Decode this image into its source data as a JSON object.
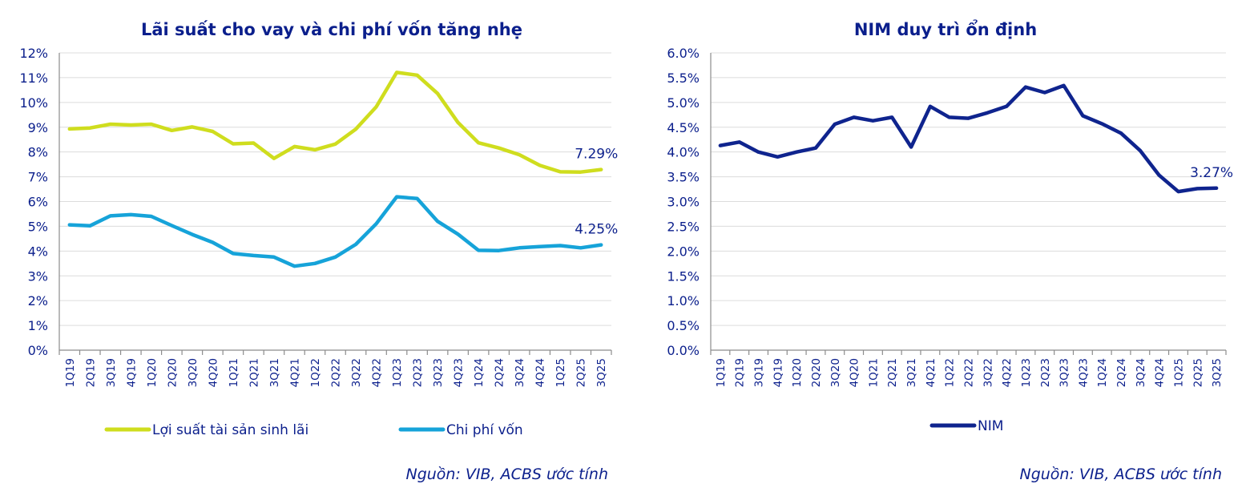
{
  "colors": {
    "text": "#0b1f8c",
    "yield": "#cfdd1e",
    "cost": "#16a3d9",
    "nim": "#0f248e"
  },
  "chart_data": [
    {
      "type": "line",
      "title": "Lãi suất cho vay và chi phí vốn tăng nhẹ",
      "categories": [
        "1Q19",
        "2Q19",
        "3Q19",
        "4Q19",
        "1Q20",
        "2Q20",
        "3Q20",
        "4Q20",
        "1Q21",
        "2Q21",
        "3Q21",
        "4Q21",
        "1Q22",
        "2Q22",
        "3Q22",
        "4Q22",
        "1Q23",
        "2Q23",
        "3Q23",
        "4Q23",
        "1Q24",
        "2Q24",
        "3Q24",
        "4Q24",
        "1Q25",
        "2Q25",
        "3Q25"
      ],
      "ylim": [
        0,
        12
      ],
      "yticks": [
        "0%",
        "1%",
        "2%",
        "3%",
        "4%",
        "5%",
        "6%",
        "7%",
        "8%",
        "9%",
        "10%",
        "11%",
        "12%"
      ],
      "grid": true,
      "legend": "bottom",
      "series": [
        {
          "name": "Lợi suất tài sản sinh lãi",
          "color": "#cfdd1e",
          "values": [
            8.93,
            8.97,
            9.12,
            9.09,
            9.12,
            8.87,
            9.01,
            8.83,
            8.33,
            8.36,
            7.74,
            8.22,
            8.09,
            8.32,
            8.92,
            9.82,
            11.21,
            11.1,
            10.36,
            9.19,
            8.37,
            8.16,
            7.89,
            7.46,
            7.2,
            7.19,
            7.29
          ],
          "end_label": "7.29%"
        },
        {
          "name": "Chi phí vốn",
          "color": "#16a3d9",
          "values": [
            5.06,
            5.02,
            5.42,
            5.47,
            5.4,
            5.03,
            4.67,
            4.35,
            3.9,
            3.82,
            3.76,
            3.39,
            3.5,
            3.76,
            4.27,
            5.1,
            6.19,
            6.12,
            5.2,
            4.68,
            4.03,
            4.02,
            4.13,
            4.18,
            4.22,
            4.13,
            4.25
          ],
          "end_label": "4.25%"
        }
      ],
      "source": "Nguồn: VIB, ACBS ước tính"
    },
    {
      "type": "line",
      "title": "NIM duy trì ổn định",
      "categories": [
        "1Q19",
        "2Q19",
        "3Q19",
        "4Q19",
        "1Q20",
        "2Q20",
        "3Q20",
        "4Q20",
        "1Q21",
        "2Q21",
        "3Q21",
        "4Q21",
        "1Q22",
        "2Q22",
        "3Q22",
        "4Q22",
        "1Q23",
        "2Q23",
        "3Q23",
        "4Q23",
        "1Q24",
        "2Q24",
        "3Q24",
        "4Q24",
        "1Q25",
        "2Q25",
        "3Q25"
      ],
      "ylim": [
        0,
        6
      ],
      "yticks": [
        "0.0%",
        "0.5%",
        "1.0%",
        "1.5%",
        "2.0%",
        "2.5%",
        "3.0%",
        "3.5%",
        "4.0%",
        "4.5%",
        "5.0%",
        "5.5%",
        "6.0%"
      ],
      "grid": true,
      "legend": "bottom",
      "series": [
        {
          "name": "NIM",
          "color": "#0f248e",
          "values": [
            4.13,
            4.2,
            4.0,
            3.9,
            4.0,
            4.08,
            4.56,
            4.7,
            4.63,
            4.7,
            4.1,
            4.92,
            4.7,
            4.68,
            4.79,
            4.92,
            5.31,
            5.2,
            5.34,
            4.73,
            4.57,
            4.38,
            4.03,
            3.53,
            3.2,
            3.26,
            3.27
          ],
          "end_label": "3.27%"
        }
      ],
      "source": "Nguồn: VIB, ACBS ước tính"
    }
  ]
}
